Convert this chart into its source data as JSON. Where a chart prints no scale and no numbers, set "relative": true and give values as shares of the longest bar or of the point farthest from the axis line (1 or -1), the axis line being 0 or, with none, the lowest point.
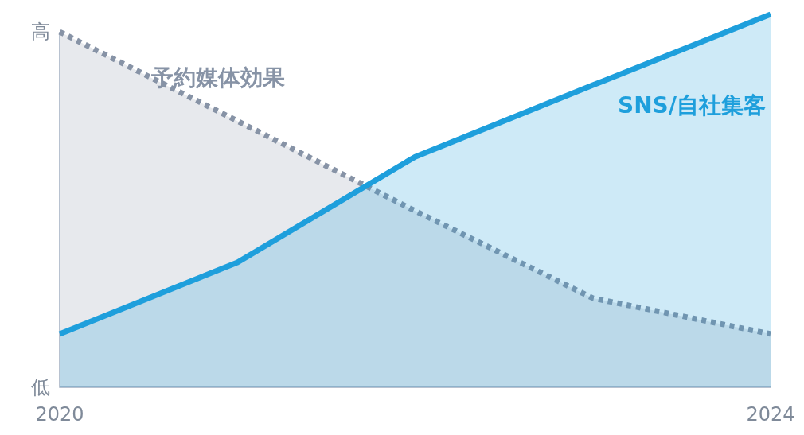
{
  "chart_data": {
    "type": "area",
    "relative": true,
    "x": [
      2020,
      2021,
      2022,
      2023,
      2024
    ],
    "xlim": [
      2020,
      2024
    ],
    "xticks": [
      2020,
      2024
    ],
    "tick_labels": "x",
    "grid": false,
    "legend": false,
    "marker": "none",
    "annotations": [
      "高",
      "低"
    ],
    "series": [
      {
        "name": "予約媒体効果",
        "color": "#8793a6",
        "line_style": "dotted",
        "values": [
          0.953,
          0.714,
          0.473,
          0.239,
          0.143
        ]
      },
      {
        "name": "SNS/自社集客",
        "color": "#1e9fdc",
        "line_style": "solid",
        "values": [
          0.143,
          0.335,
          0.618,
          0.81,
          1
        ]
      }
    ]
  }
}
